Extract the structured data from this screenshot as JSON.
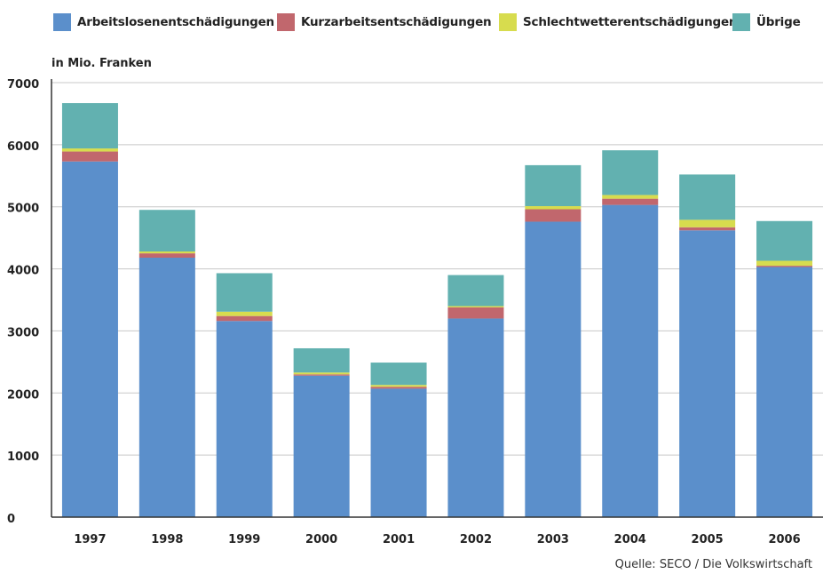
{
  "colors": {
    "arbeitslosen": "#5b8fcb",
    "kurzarbeit": "#c1676d",
    "schlechtwetter": "#d7dc4e",
    "uebrige": "#62b1b0",
    "grid": "#c8c8c8",
    "axis": "#333333"
  },
  "chart_data": {
    "type": "bar",
    "stacked": true,
    "unit_label": "in Mio. Franken",
    "categories": [
      "1997",
      "1998",
      "1999",
      "2000",
      "2001",
      "2002",
      "2003",
      "2004",
      "2005",
      "2006"
    ],
    "series": [
      {
        "name": "Arbeitslosenentschädigungen",
        "color_key": "arbeitslosen",
        "values": [
          5730,
          4180,
          3160,
          2280,
          2070,
          3200,
          4760,
          5030,
          4620,
          4030
        ]
      },
      {
        "name": "Kurzarbeitsentschädigungen",
        "color_key": "kurzarbeit",
        "values": [
          160,
          70,
          80,
          20,
          30,
          180,
          200,
          100,
          50,
          20
        ]
      },
      {
        "name": "Schlechtwetterentschädigungen",
        "color_key": "schlechtwetter",
        "values": [
          50,
          30,
          70,
          30,
          30,
          20,
          50,
          60,
          120,
          80
        ]
      },
      {
        "name": "Übrige",
        "color_key": "uebrige",
        "values": [
          730,
          670,
          620,
          390,
          360,
          500,
          660,
          720,
          730,
          640
        ]
      }
    ],
    "ylim": [
      0,
      7000
    ],
    "yticks": [
      0,
      1000,
      2000,
      3000,
      4000,
      5000,
      6000,
      7000
    ],
    "grid": true,
    "legend_position": "top"
  },
  "source": "Quelle: SECO / Die Volkswirtschaft"
}
